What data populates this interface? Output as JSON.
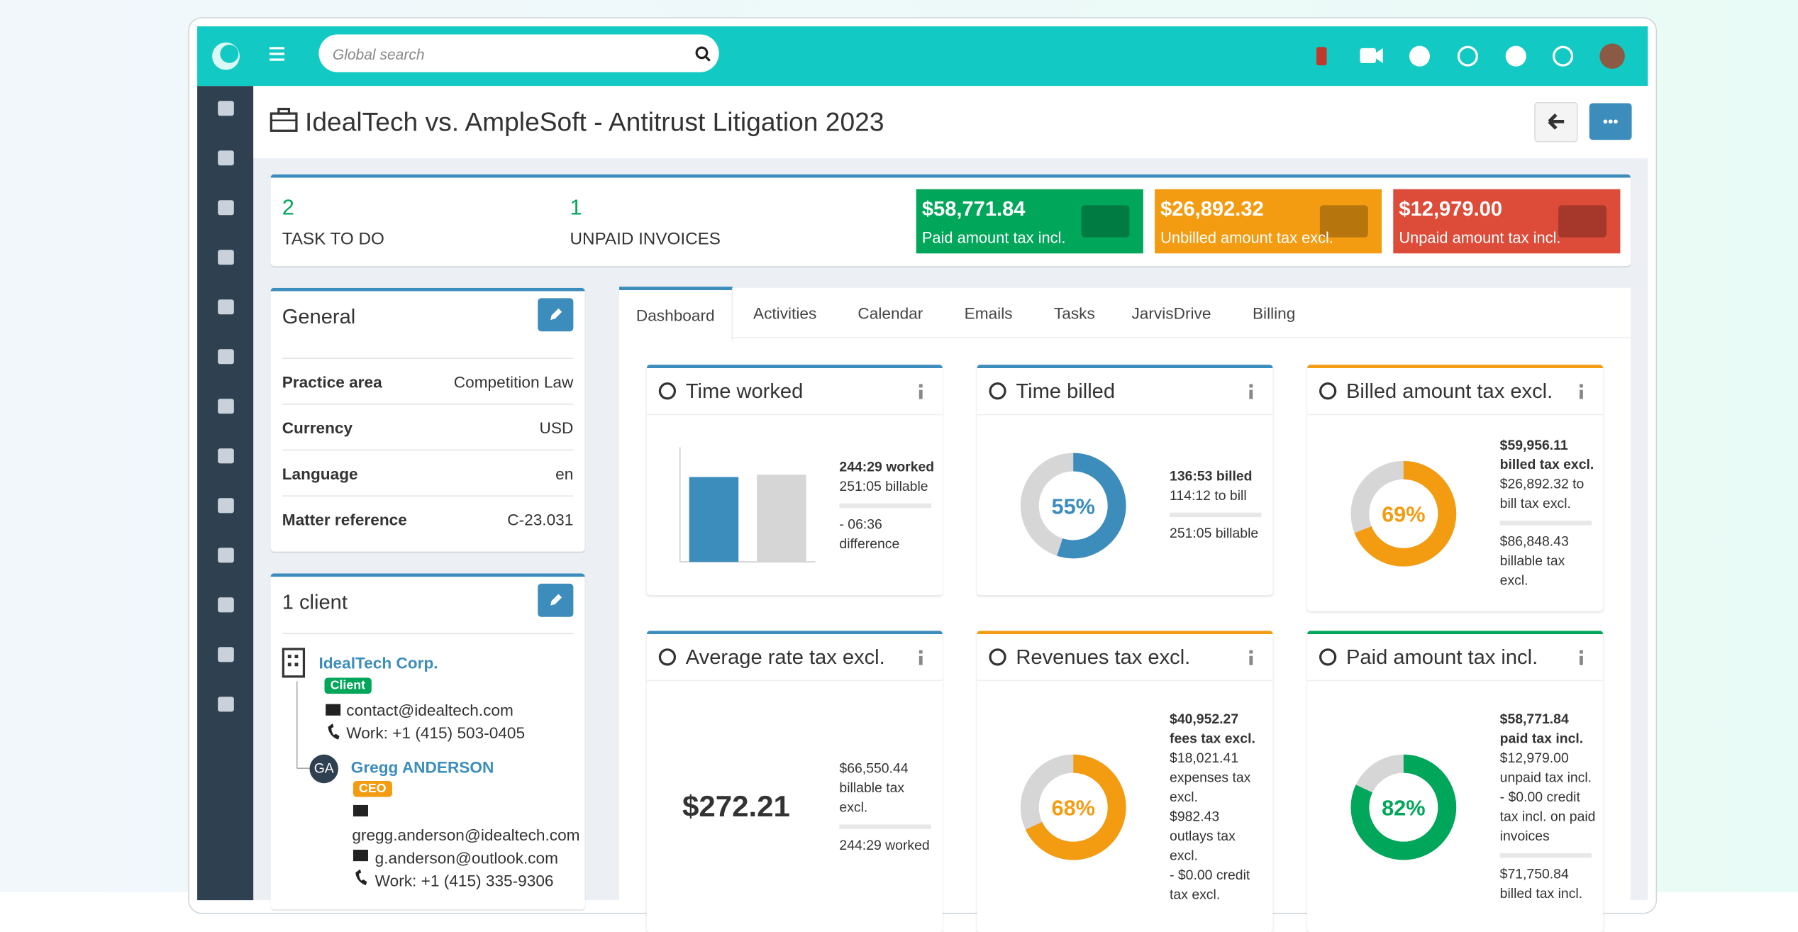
{
  "header": {
    "search_placeholder": "Global search"
  },
  "title": "IdealTech vs. AmpleSoft - Antitrust Litigation 2023",
  "summary": [
    {
      "count": 2,
      "label": "TASK TO DO"
    },
    {
      "count": 1,
      "label": "UNPAID INVOICES"
    }
  ],
  "kpis": [
    {
      "amount": "$58,771.84",
      "label": "Paid amount tax incl.",
      "color": "#00a65a"
    },
    {
      "amount": "$26,892.32",
      "label": "Unbilled amount tax excl.",
      "color": "#f39c12"
    },
    {
      "amount": "$12,979.00",
      "label": "Unpaid amount tax incl.",
      "color": "#dd4b39"
    }
  ],
  "general": {
    "title": "General",
    "rows": [
      [
        "Practice area",
        "Competition Law"
      ],
      [
        "Currency",
        "USD"
      ],
      [
        "Language",
        "en"
      ],
      [
        "Matter reference",
        "C-23.031"
      ]
    ]
  },
  "client": {
    "title": "1 client",
    "company": "IdealTech Corp.",
    "badge": "Client",
    "email": "contact@idealtech.com",
    "phone": "Work: +1 (415) 503-0405",
    "contact": {
      "initials": "GA",
      "name": "Gregg ANDERSON",
      "badge": "CEO",
      "emails": [
        "gregg.anderson@idealtech.com",
        "g.anderson@outlook.com"
      ],
      "phone": "Work: +1 (415) 335-9306"
    }
  },
  "tabs": [
    "Dashboard",
    "Activities",
    "Calendar",
    "Emails",
    "Tasks",
    "JarvisDrive",
    "Billing"
  ],
  "widgets": [
    {
      "title": "Time worked",
      "color": "#3c8dbc",
      "chart": {
        "type": "bars",
        "values": [
          244.48,
          251.08
        ],
        "colors": [
          "#3c8dbc",
          "#d6d6d6"
        ]
      },
      "bold_first": true,
      "groups": [
        [
          "244:29 worked",
          "251:05 billable"
        ],
        [
          "- 06:36 difference"
        ]
      ]
    },
    {
      "title": "Time billed",
      "color": "#3c8dbc",
      "chart": {
        "type": "donut",
        "value": 55,
        "label": "55%",
        "color": "#3c8dbc"
      },
      "bold_first": true,
      "groups": [
        [
          "136:53 billed",
          "114:12 to bill"
        ],
        [
          "251:05 billable"
        ]
      ]
    },
    {
      "title": "Billed amount tax excl.",
      "color": "#f39c12",
      "chart": {
        "type": "donut",
        "value": 69,
        "label": "69%",
        "color": "#f39c12"
      },
      "bold_first": true,
      "groups": [
        [
          "$59,956.11 billed tax excl.",
          "$26,892.32 to bill tax excl."
        ],
        [
          "$86,848.43 billable tax excl."
        ]
      ]
    },
    {
      "title": "Average rate tax excl.",
      "color": "#3c8dbc",
      "chart": {
        "type": "big",
        "text": "$272.21"
      },
      "bold_first": false,
      "groups": [
        [
          "$66,550.44 billable tax excl."
        ],
        [
          "244:29 worked"
        ]
      ]
    },
    {
      "title": "Revenues tax excl.",
      "color": "#f39c12",
      "chart": {
        "type": "donut",
        "value": 68,
        "label": "68%",
        "color": "#f39c12"
      },
      "bold_first": true,
      "groups": [
        [
          "$40,952.27 fees tax excl.",
          "$18,021.41 expenses tax excl.",
          "$982.43 outlays tax excl.",
          "- $0.00 credit tax excl."
        ]
      ]
    },
    {
      "title": "Paid amount tax incl.",
      "color": "#00a65a",
      "chart": {
        "type": "donut",
        "value": 82,
        "label": "82%",
        "color": "#00a65a"
      },
      "bold_first": true,
      "groups": [
        [
          "$58,771.84 paid tax incl.",
          "$12,979.00 unpaid tax incl.",
          "- $0.00 credit tax incl. on paid invoices"
        ],
        [
          "$71,750.84 billed tax incl."
        ]
      ]
    }
  ]
}
